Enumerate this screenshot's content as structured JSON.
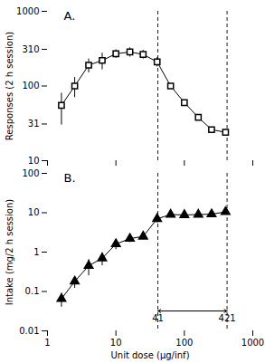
{
  "chart_data": [
    {
      "type": "line",
      "log": true,
      "x": [
        1.6,
        2.5,
        4.0,
        6.3,
        10,
        16,
        25,
        40,
        63,
        100,
        160,
        250,
        400
      ],
      "values": [
        55,
        100,
        190,
        220,
        270,
        285,
        265,
        210,
        100,
        60,
        38,
        26,
        24
      ],
      "yerr_lo": [
        25,
        30,
        40,
        55,
        35,
        40,
        35,
        30,
        0,
        0,
        0,
        0,
        0
      ],
      "yerr_hi": [
        25,
        30,
        40,
        55,
        35,
        40,
        35,
        30,
        0,
        0,
        0,
        0,
        0
      ],
      "color": "#000000",
      "marker": "open_square",
      "ylabel": "Responses (2 h session)",
      "xlim": [
        1,
        1000
      ],
      "xticks": [
        1,
        10,
        100,
        1000
      ],
      "ylim": [
        10,
        1000
      ],
      "yticks": [
        10,
        31,
        100,
        310,
        1000
      ],
      "tick_labels": "y",
      "vlines": [
        41,
        421
      ],
      "annotations": [
        {
          "text": "A."
        }
      ]
    },
    {
      "type": "line",
      "log": true,
      "x": [
        1.6,
        2.5,
        4.0,
        6.3,
        10,
        16,
        25,
        40,
        63,
        100,
        160,
        250,
        400
      ],
      "values": [
        0.065,
        0.18,
        0.45,
        0.7,
        1.6,
        2.2,
        2.5,
        7.0,
        9.0,
        8.8,
        9.0,
        9.2,
        10.5
      ],
      "yerr_lo": [
        0.025,
        0.06,
        0.2,
        0.25,
        0.45,
        0.45,
        0.35,
        1.5,
        0,
        0,
        0,
        0,
        0
      ],
      "yerr_hi": [
        0.025,
        0.06,
        0.2,
        0.25,
        0.45,
        0.45,
        0.35,
        1.5,
        0,
        0,
        0,
        0,
        0
      ],
      "color": "#000000",
      "marker": "triangle",
      "xlabel": "Unit dose (μg/inf)",
      "ylabel": "Intake (mg/2 h session)",
      "xlim": [
        1,
        1000
      ],
      "xticks": [
        1,
        10,
        100,
        1000
      ],
      "ylim": [
        0.01,
        100
      ],
      "yticks": [
        0.01,
        0.1,
        1,
        10,
        100
      ],
      "vlines": [
        41,
        421
      ],
      "arrow": {
        "x1": 41,
        "x2": 421,
        "y": 0.032
      },
      "annotations": [
        {
          "text": "B."
        },
        {
          "text": "41",
          "x": 41,
          "y": 0.032
        },
        {
          "text": "421",
          "x": 421,
          "y": 0.032
        }
      ]
    }
  ]
}
